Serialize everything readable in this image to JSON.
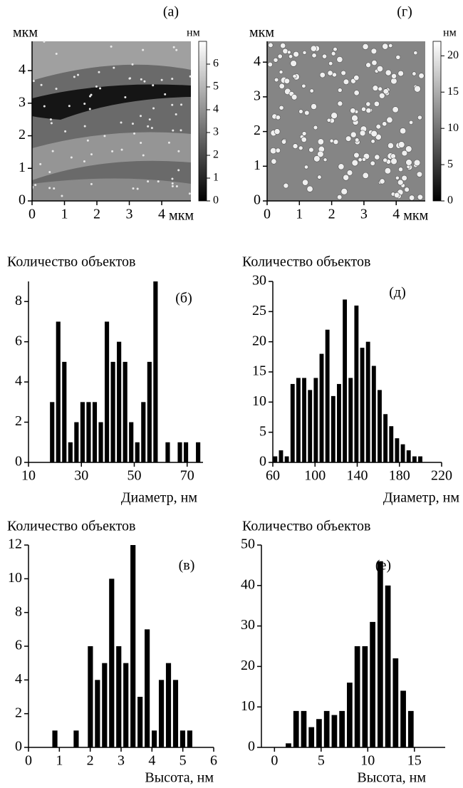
{
  "chart_data": [
    {
      "type": "image",
      "panel_label": "(а)",
      "y_label": "мкм",
      "x_label": "мкм",
      "xlim": [
        0,
        4.9
      ],
      "ylim": [
        0,
        4.9
      ],
      "xticks": [
        0,
        1,
        2,
        3,
        4
      ],
      "yticks": [
        0,
        1,
        2,
        3,
        4
      ],
      "colorbar_label": "нм",
      "clim": [
        0,
        7
      ],
      "cticks": [
        0,
        1,
        2,
        3,
        4,
        5,
        6
      ]
    },
    {
      "type": "image",
      "panel_label": "(г)",
      "y_label": "мкм",
      "x_label": "мкм",
      "xlim": [
        0,
        4.9
      ],
      "ylim": [
        0,
        4.6
      ],
      "xticks": [
        0,
        1,
        2,
        3,
        4
      ],
      "yticks": [
        0,
        1,
        2,
        3,
        4
      ],
      "colorbar_label": "нм",
      "clim": [
        0,
        22
      ],
      "cticks": [
        0,
        5,
        10,
        15,
        20
      ]
    },
    {
      "type": "histogram",
      "panel_label": "(б)",
      "y_label": "Количество объектов",
      "x_label": "Диаметр, нм",
      "color": "#000000",
      "bins": [
        17.8,
        20.1,
        22.4,
        24.7,
        27.0,
        29.3,
        31.6,
        33.9,
        36.2,
        38.5,
        40.8,
        43.1,
        45.4,
        47.7,
        50.0,
        52.3,
        54.6,
        56.9,
        59.2,
        61.5,
        63.8,
        66.1,
        68.4,
        70.7,
        73.0,
        75.3
      ],
      "values": [
        3,
        7,
        5,
        1,
        2,
        3,
        3,
        3,
        2,
        7,
        5,
        6,
        5,
        2,
        1,
        3,
        5,
        9,
        0,
        1,
        0,
        1,
        1,
        0,
        1
      ],
      "xlim": [
        10,
        76
      ],
      "xticks": [
        10,
        30,
        50,
        70
      ],
      "ylim": [
        0,
        9
      ],
      "yticks": [
        0,
        2,
        4,
        6,
        8
      ]
    },
    {
      "type": "histogram",
      "panel_label": "(д)",
      "y_label": "Количество объектов",
      "x_label": "Диаметр, нм",
      "color": "#000000",
      "bins": [
        59.5,
        65,
        70.5,
        76,
        81.5,
        87,
        92.5,
        98,
        103.5,
        109,
        114.5,
        120,
        125.5,
        131,
        136.5,
        142,
        147.5,
        153,
        158.5,
        164,
        169.5,
        175,
        180.5,
        186,
        191.5,
        197,
        202.5
      ],
      "values": [
        1,
        2,
        1,
        13,
        14,
        14,
        12,
        14,
        18,
        22,
        11,
        13,
        27,
        14,
        26,
        19,
        20,
        16,
        12,
        8,
        6,
        4,
        3,
        2,
        1,
        1
      ],
      "xlim": [
        60,
        220
      ],
      "xticks": [
        60,
        100,
        140,
        180,
        220
      ],
      "ylim": [
        0,
        30
      ],
      "yticks": [
        0,
        5,
        10,
        15,
        20,
        25,
        30
      ]
    },
    {
      "type": "histogram",
      "panel_label": "(в)",
      "y_label": "Количество объектов",
      "x_label": "Высота, нм",
      "color": "#000000",
      "bins": [
        0.74,
        0.97,
        1.2,
        1.43,
        1.66,
        1.89,
        2.12,
        2.35,
        2.58,
        2.81,
        3.04,
        3.27,
        3.5,
        3.73,
        3.96,
        4.19,
        4.42,
        4.65,
        4.88,
        5.11,
        5.34
      ],
      "values": [
        1,
        0,
        0,
        1,
        0,
        6,
        4,
        5,
        10,
        6,
        5,
        12,
        3,
        7,
        1,
        4,
        5,
        4,
        1,
        1
      ],
      "xlim": [
        0,
        6
      ],
      "xticks": [
        0,
        1,
        2,
        3,
        4,
        5,
        6
      ],
      "ylim": [
        0,
        12
      ],
      "yticks": [
        0,
        2,
        4,
        6,
        8,
        10,
        12
      ]
    },
    {
      "type": "histogram",
      "panel_label": "(е)",
      "y_label": "Количество объектов",
      "x_label": "Высота, нм",
      "color": "#000000",
      "bins": [
        1.09,
        1.91,
        2.73,
        3.55,
        4.37,
        5.19,
        6.01,
        6.83,
        7.65,
        8.47,
        9.29,
        10.11,
        10.93,
        11.75,
        12.57,
        13.39,
        14.21,
        15.03
      ],
      "values": [
        1,
        9,
        9,
        5,
        7,
        9,
        8,
        9,
        16,
        25,
        25,
        31,
        46,
        40,
        22,
        14,
        9
      ],
      "xlim": [
        -1.4,
        18.3
      ],
      "xticks": [
        0,
        5,
        10,
        15
      ],
      "ylim": [
        0,
        50
      ],
      "yticks": [
        0,
        10,
        20,
        30,
        40,
        50
      ]
    }
  ]
}
